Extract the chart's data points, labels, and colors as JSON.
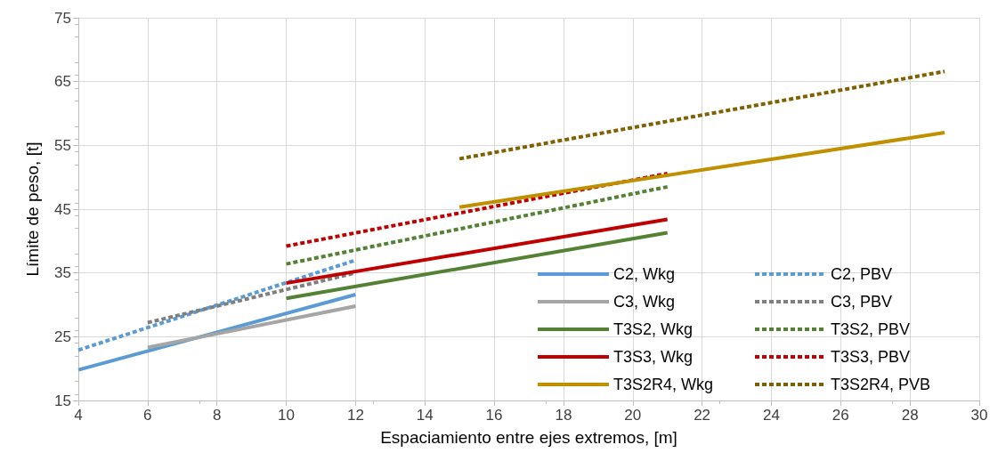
{
  "chart_data": {
    "type": "line",
    "xlabel": "Espaciamiento entre ejes extremos, [m]",
    "ylabel": "Límite de peso, [t]",
    "xlim": [
      4,
      30
    ],
    "xticks": [
      4,
      6,
      8,
      10,
      12,
      14,
      16,
      18,
      20,
      22,
      24,
      26,
      28,
      30
    ],
    "ylim": [
      15,
      75
    ],
    "yticks": [
      15,
      25,
      35,
      45,
      55,
      65,
      75
    ],
    "grid": true,
    "legend": "bottom right",
    "marker": "none",
    "series": [
      {
        "name": "C2, Wkg",
        "color": "#5b9bd5",
        "line_style": "solid",
        "x": [
          4,
          12
        ],
        "values": [
          19.8,
          31.6
        ]
      },
      {
        "name": "C2, PBV",
        "color": "#5b9bd5",
        "line_style": "dashed",
        "x": [
          4,
          12
        ],
        "values": [
          22.9,
          37
        ]
      },
      {
        "name": "C3, Wkg",
        "color": "#a5a5a5",
        "line_style": "solid",
        "x": [
          6,
          12
        ],
        "values": [
          23.3,
          29.8
        ]
      },
      {
        "name": "C3, PBV",
        "color": "#7f7f7f",
        "line_style": "dashed",
        "x": [
          6,
          12
        ],
        "values": [
          27.2,
          35
        ]
      },
      {
        "name": "T3S2, Wkg",
        "color": "#548235",
        "line_style": "solid",
        "x": [
          10,
          21
        ],
        "values": [
          31,
          41.3
        ]
      },
      {
        "name": "T3S2, PBV",
        "color": "#548235",
        "line_style": "dashed",
        "x": [
          10,
          21
        ],
        "values": [
          36.4,
          48.5
        ]
      },
      {
        "name": "T3S3, Wkg",
        "color": "#c00000",
        "line_style": "solid",
        "x": [
          10,
          21
        ],
        "values": [
          33.4,
          43.4
        ]
      },
      {
        "name": "T3S3, PBV",
        "color": "#c00000",
        "line_style": "dashed",
        "x": [
          10,
          21
        ],
        "values": [
          39.2,
          50.6
        ]
      },
      {
        "name": "T3S2R4, Wkg",
        "color": "#bf9000",
        "line_style": "solid",
        "x": [
          15,
          29
        ],
        "values": [
          45.3,
          57
        ]
      },
      {
        "name": "T3S2R4, PVB",
        "color": "#806000",
        "line_style": "dashed",
        "x": [
          15,
          29
        ],
        "values": [
          52.9,
          66.6
        ]
      }
    ]
  }
}
